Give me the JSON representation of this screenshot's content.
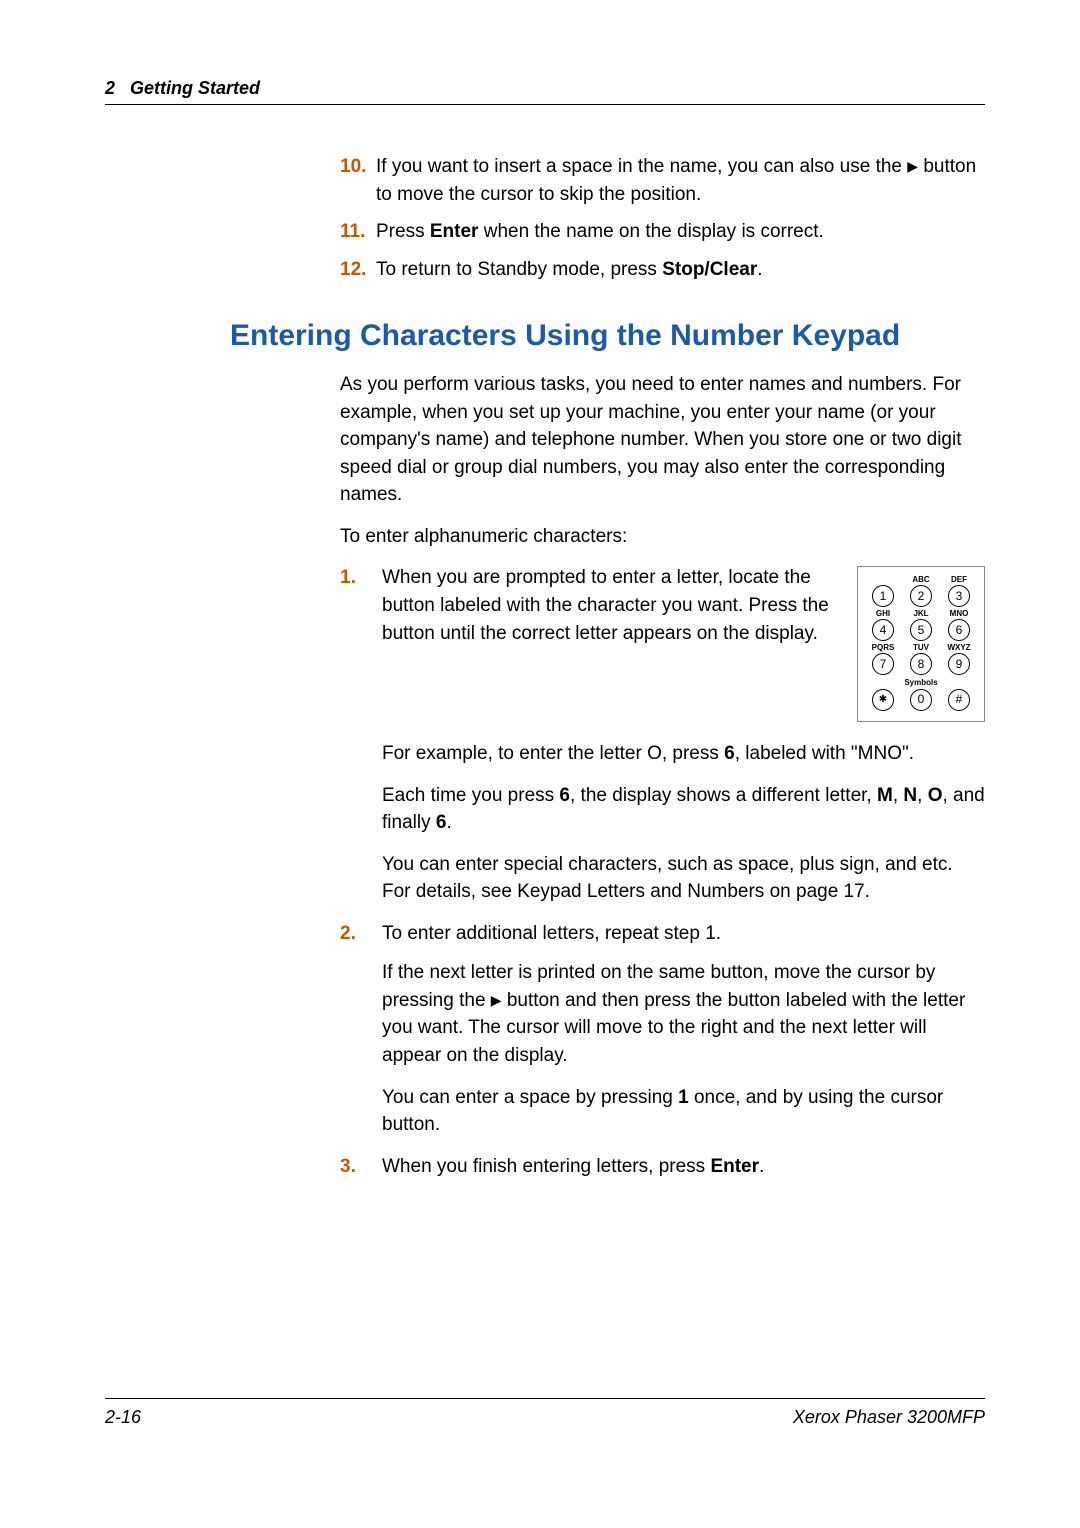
{
  "header": {
    "chapter_num": "2",
    "chapter_title": "Getting Started"
  },
  "top_list": {
    "item10": {
      "num": "10.",
      "text_a": "If you want to insert a space in the name, you can also use the ",
      "text_b": " button to move the cursor to skip the position."
    },
    "item11": {
      "num": "11.",
      "text_a": "Press ",
      "bold_a": "Enter",
      "text_b": " when the name on the display is correct."
    },
    "item12": {
      "num": "12.",
      "text_a": "To return to Standby mode, press ",
      "bold_a": "Stop/Clear",
      "text_b": "."
    }
  },
  "heading": "Entering Characters Using the Number Keypad",
  "intro": {
    "p1": "As you perform various tasks, you need to enter names and numbers. For example, when you set up your machine, you enter your name (or your company's name) and telephone number. When you store one or two digit speed dial or group dial numbers, you may also enter the corresponding names.",
    "p2": "To enter alphanumeric characters:"
  },
  "steps": {
    "s1": {
      "num": "1.",
      "p1": "When you are prompted to enter a letter, locate the button labeled with the character you want. Press the button until the correct letter appears on the display.",
      "p2_a": "For example, to enter the letter O, press ",
      "p2_bold": "6",
      "p2_b": ", labeled with \"MNO\".",
      "p3_a": "Each time you press ",
      "p3_bold1": "6",
      "p3_b": ", the display shows a different letter, ",
      "p3_bold2": "M",
      "p3_c": ", ",
      "p3_bold3": "N",
      "p3_d": ", ",
      "p3_bold4": "O",
      "p3_e": ", and finally ",
      "p3_bold5": "6",
      "p3_f": ".",
      "p4": "You can enter special characters, such as space, plus sign, and etc. For details, see Keypad Letters and Numbers on page 17."
    },
    "s2": {
      "num": "2.",
      "p1": "To enter additional letters, repeat step 1.",
      "p2_a": "If the next letter is printed on the same button, move the cursor by pressing the ",
      "p2_b": " button and then press the button labeled with the letter you want. The cursor will move to the right and the next letter will appear on the display.",
      "p3_a": "You can enter a space by pressing ",
      "p3_bold": "1",
      "p3_b": " once, and by using the cursor button."
    },
    "s3": {
      "num": "3.",
      "p1_a": "When you finish entering letters, press ",
      "p1_bold": "Enter",
      "p1_b": "."
    }
  },
  "keypad": {
    "labels": {
      "abc": "ABC",
      "def": "DEF",
      "ghi": "GHI",
      "jkl": "JKL",
      "mno": "MNO",
      "pqrs": "PQRS",
      "tuv": "TUV",
      "wxyz": "WXYZ",
      "sym": "Symbols"
    },
    "keys": {
      "k1": "1",
      "k2": "2",
      "k3": "3",
      "k4": "4",
      "k5": "5",
      "k6": "6",
      "k7": "7",
      "k8": "8",
      "k9": "9",
      "k0": "0",
      "star": "✱",
      "hash": "#"
    }
  },
  "footer": {
    "page": "2-16",
    "product": "Xerox Phaser 3200MFP"
  }
}
